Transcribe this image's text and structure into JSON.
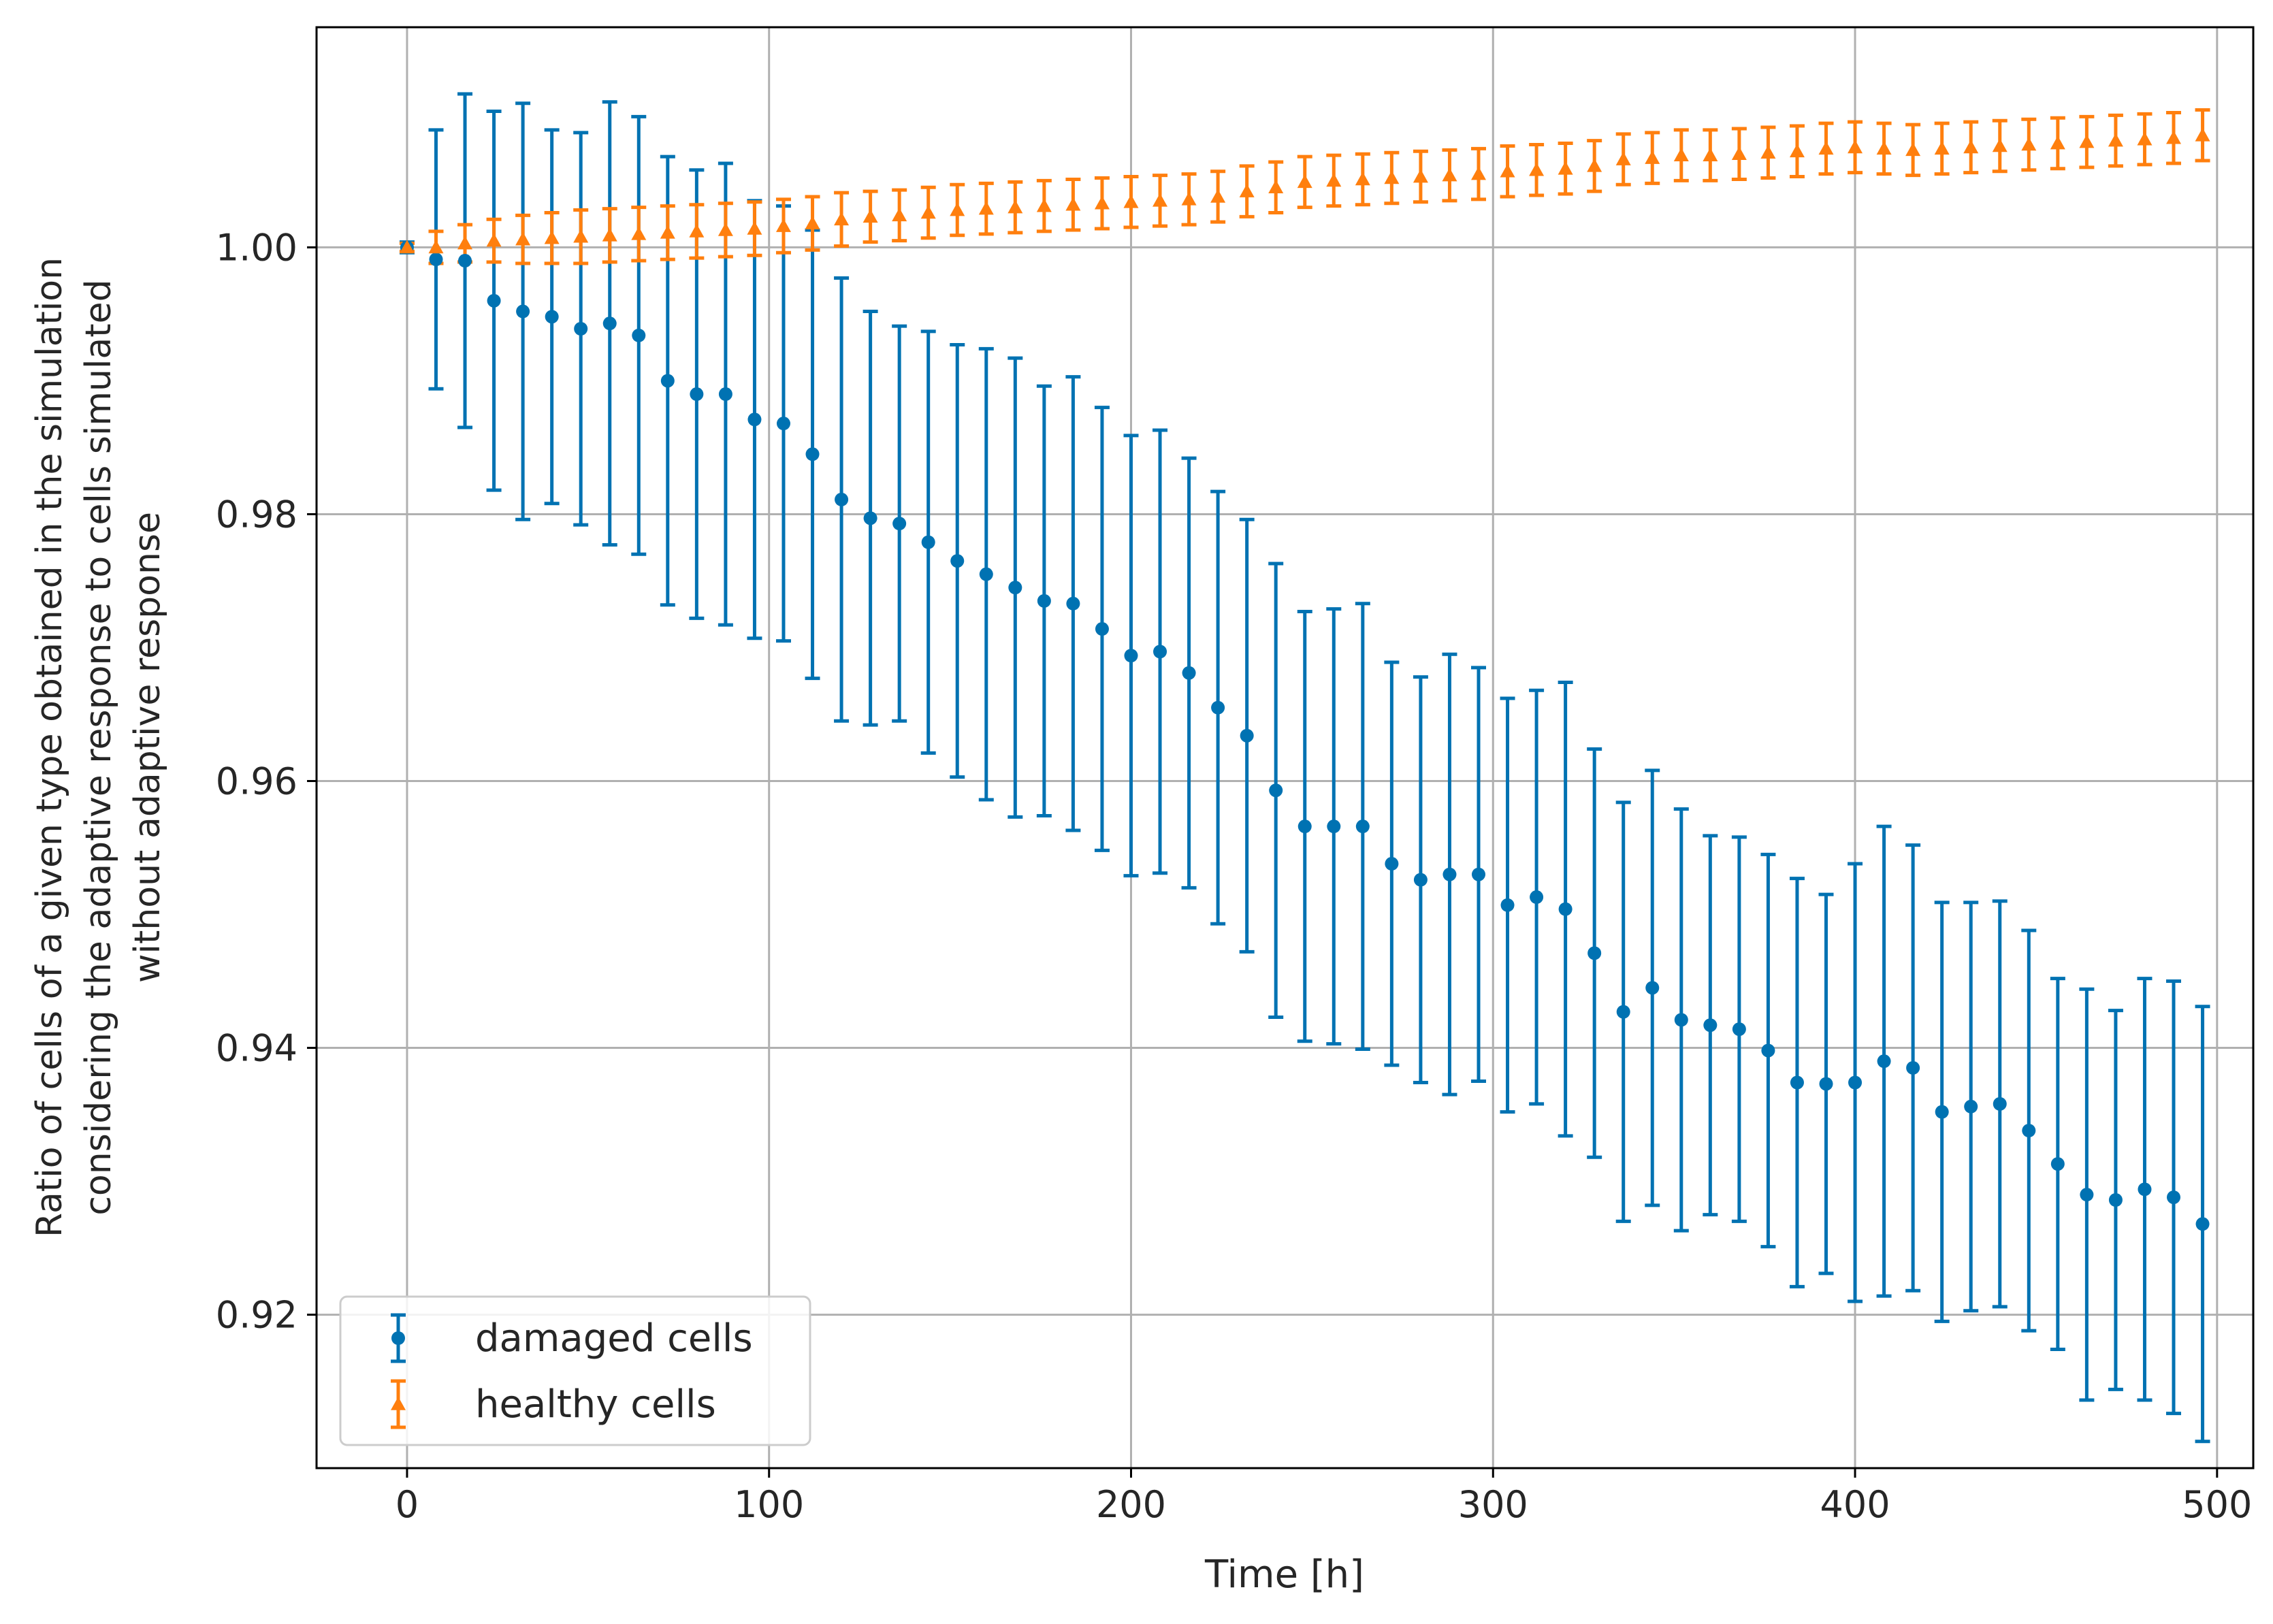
{
  "chart_data": {
    "type": "scatter",
    "title": "",
    "xlabel": "Time [h]",
    "ylabel_lines": [
      "Ratio of cells of a given type obtained in the simulation",
      "considering the adaptive response to cells simulated",
      "without adaptive response"
    ],
    "xlim": [
      -25,
      510
    ],
    "ylim": [
      0.9085,
      1.0165
    ],
    "xticks": [
      0,
      100,
      200,
      300,
      400,
      500
    ],
    "xtick_labels": [
      "0",
      "100",
      "200",
      "300",
      "400",
      "500"
    ],
    "yticks": [
      0.92,
      0.94,
      0.96,
      0.98,
      1.0
    ],
    "ytick_labels": [
      "0.92",
      "0.94",
      "0.96",
      "0.98",
      "1.00"
    ],
    "grid": true,
    "legend_position": "lower-left",
    "x": [
      0,
      8,
      16,
      24,
      32,
      40,
      48,
      56,
      64,
      72,
      80,
      88,
      96,
      104,
      112,
      120,
      128,
      136,
      144,
      152,
      160,
      168,
      176,
      184,
      192,
      200,
      208,
      216,
      224,
      232,
      240,
      248,
      256,
      264,
      272,
      280,
      288,
      296,
      304,
      312,
      320,
      328,
      336,
      344,
      352,
      360,
      368,
      376,
      384,
      392,
      400,
      408,
      416,
      424,
      432,
      440,
      448,
      456,
      464,
      472,
      480,
      488,
      496
    ],
    "series": [
      {
        "name": "damaged cells",
        "color": "#0072b2",
        "marker": "circle",
        "values": [
          1.0,
          0.9991,
          0.999,
          0.996,
          0.9952,
          0.9948,
          0.9939,
          0.9943,
          0.9934,
          0.99,
          0.989,
          0.989,
          0.9871,
          0.9868,
          0.9845,
          0.9811,
          0.9797,
          0.9793,
          0.9779,
          0.9765,
          0.9755,
          0.9745,
          0.9735,
          0.9733,
          0.9714,
          0.9694,
          0.9697,
          0.9681,
          0.9655,
          0.9634,
          0.9593,
          0.9566,
          0.9566,
          0.9566,
          0.9538,
          0.9526,
          0.953,
          0.953,
          0.9507,
          0.9513,
          0.9504,
          0.9471,
          0.9427,
          0.9445,
          0.9421,
          0.9417,
          0.9414,
          0.9398,
          0.9374,
          0.9373,
          0.9374,
          0.939,
          0.9385,
          0.9352,
          0.9356,
          0.9358,
          0.9338,
          0.9313,
          0.929,
          0.9286,
          0.9294,
          0.9288,
          0.9268
        ],
        "err": [
          0.0004,
          0.0097,
          0.0125,
          0.0142,
          0.0156,
          0.014,
          0.0147,
          0.0166,
          0.0164,
          0.0168,
          0.0168,
          0.0173,
          0.0164,
          0.0163,
          0.0168,
          0.0166,
          0.0155,
          0.0148,
          0.0158,
          0.0162,
          0.0169,
          0.0172,
          0.0161,
          0.017,
          0.0166,
          0.0165,
          0.0166,
          0.0161,
          0.0162,
          0.0162,
          0.017,
          0.0161,
          0.0163,
          0.0167,
          0.0151,
          0.0152,
          0.0165,
          0.0155,
          0.0155,
          0.0155,
          0.017,
          0.0153,
          0.0157,
          0.0163,
          0.0158,
          0.0142,
          0.0144,
          0.0147,
          0.0153,
          0.0142,
          0.0164,
          0.0176,
          0.0167,
          0.0157,
          0.0153,
          0.0152,
          0.015,
          0.0139,
          0.0154,
          0.0142,
          0.0158,
          0.0162,
          0.0163
        ]
      },
      {
        "name": "healthy cells",
        "color": "#ff7f0e",
        "marker": "triangle",
        "values": [
          1.0,
          1.0,
          1.0003,
          1.0005,
          1.0006,
          1.0007,
          1.0008,
          1.0009,
          1.001,
          1.0011,
          1.0012,
          1.0013,
          1.0014,
          1.0016,
          1.0018,
          1.0021,
          1.0023,
          1.0024,
          1.0026,
          1.0028,
          1.0029,
          1.003,
          1.0031,
          1.0032,
          1.0033,
          1.0034,
          1.0035,
          1.0036,
          1.0038,
          1.0042,
          1.0045,
          1.0049,
          1.005,
          1.0051,
          1.0052,
          1.0053,
          1.0054,
          1.0055,
          1.0057,
          1.0058,
          1.0059,
          1.0061,
          1.0066,
          1.0067,
          1.0069,
          1.0069,
          1.007,
          1.0071,
          1.0072,
          1.0074,
          1.0075,
          1.0074,
          1.0073,
          1.0074,
          1.0075,
          1.0076,
          1.0077,
          1.0078,
          1.0079,
          1.008,
          1.0081,
          1.0082,
          1.0084
        ],
        "err": [
          0.0003,
          0.0012,
          0.0014,
          0.0016,
          0.0018,
          0.0019,
          0.002,
          0.002,
          0.002,
          0.002,
          0.002,
          0.002,
          0.002,
          0.002,
          0.002,
          0.002,
          0.0019,
          0.0019,
          0.0019,
          0.0019,
          0.0019,
          0.0019,
          0.0019,
          0.0019,
          0.0019,
          0.0019,
          0.0019,
          0.0019,
          0.0019,
          0.0019,
          0.0019,
          0.0019,
          0.0019,
          0.0019,
          0.0019,
          0.0019,
          0.0019,
          0.0019,
          0.0019,
          0.0019,
          0.0019,
          0.0019,
          0.0019,
          0.0019,
          0.0019,
          0.0019,
          0.0019,
          0.0019,
          0.0019,
          0.0019,
          0.0019,
          0.0019,
          0.0019,
          0.0019,
          0.0019,
          0.0019,
          0.0019,
          0.0019,
          0.0019,
          0.0019,
          0.0019,
          0.0019,
          0.0019
        ]
      }
    ]
  }
}
